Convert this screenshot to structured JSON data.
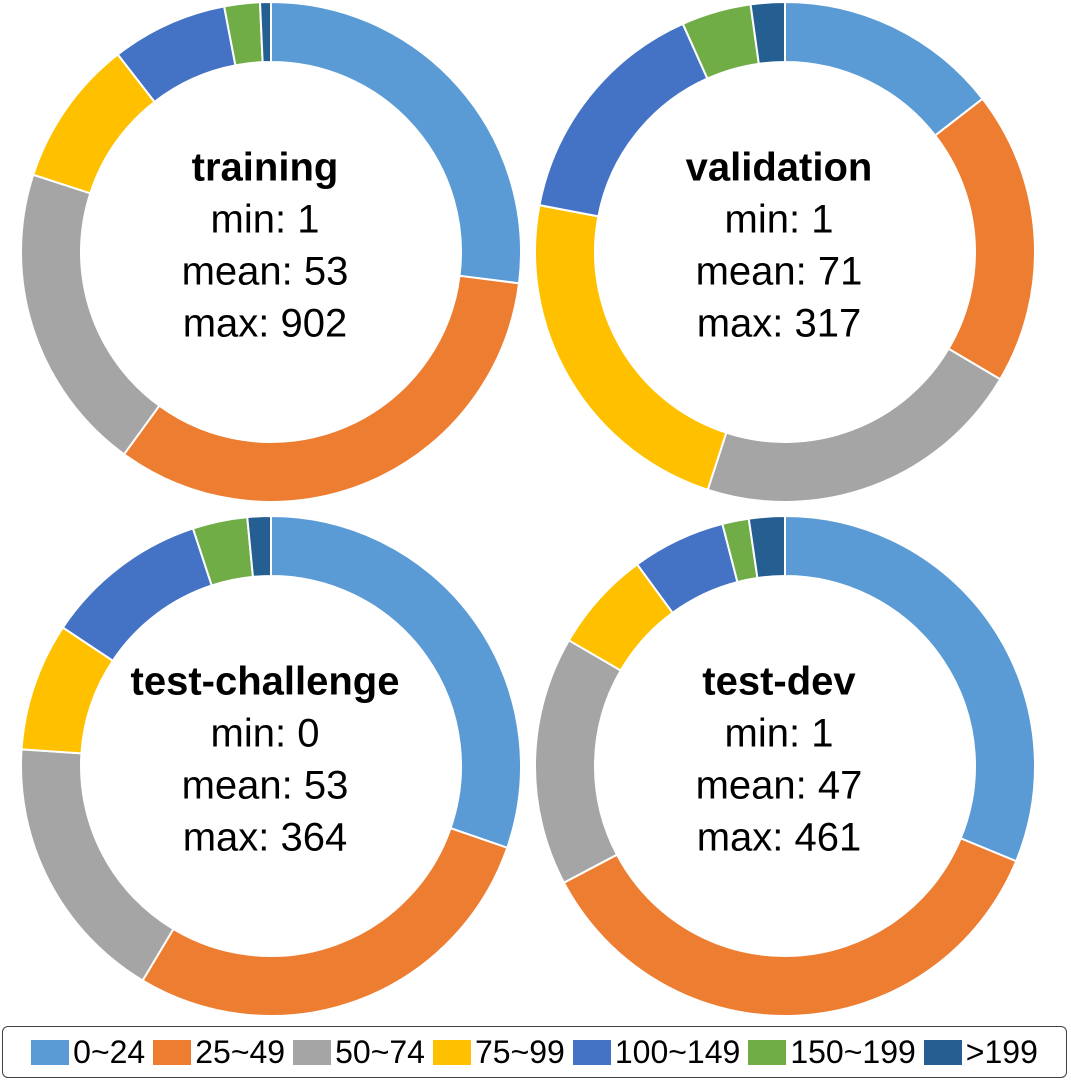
{
  "chart_data": [
    {
      "type": "pie",
      "title": "training",
      "stats": {
        "min": "min: 1",
        "mean": "mean: 53",
        "max": "max: 902"
      },
      "categories": [
        "0~24",
        "25~49",
        "50~74",
        "75~99",
        "100~149",
        "150~199",
        ">199"
      ],
      "values": [
        27.0,
        33.0,
        20.0,
        9.5,
        7.5,
        2.3,
        0.7
      ]
    },
    {
      "type": "pie",
      "title": "validation",
      "stats": {
        "min": "min: 1",
        "mean": "mean: 71",
        "max": "max: 317"
      },
      "categories": [
        "0~24",
        "25~49",
        "50~74",
        "75~99",
        "100~149",
        "150~199",
        ">199"
      ],
      "values": [
        14.5,
        19.0,
        21.5,
        23.0,
        15.3,
        4.5,
        2.2
      ]
    },
    {
      "type": "pie",
      "title": "test-challenge",
      "stats": {
        "min": "min: 0",
        "mean": "mean: 53",
        "max": "max: 364"
      },
      "categories": [
        "0~24",
        "25~49",
        "50~74",
        "75~99",
        "100~149",
        "150~199",
        ">199"
      ],
      "values": [
        30.0,
        28.0,
        17.3,
        8.2,
        10.5,
        3.5,
        1.5
      ]
    },
    {
      "type": "pie",
      "title": "test-dev",
      "stats": {
        "min": "min: 1",
        "mean": "mean: 47",
        "max": "max: 461"
      },
      "categories": [
        "0~24",
        "25~49",
        "50~74",
        "75~99",
        "100~149",
        "150~199",
        ">199"
      ],
      "values": [
        31.0,
        35.8,
        16.0,
        6.5,
        6.0,
        1.7,
        2.3
      ]
    }
  ],
  "legend": {
    "items": [
      {
        "label": "0~24",
        "color": "#5B9BD5"
      },
      {
        "label": "25~49",
        "color": "#ED7D31"
      },
      {
        "label": "50~74",
        "color": "#A5A5A5"
      },
      {
        "label": "75~99",
        "color": "#FFC000"
      },
      {
        "label": "100~149",
        "color": "#4472C4"
      },
      {
        "label": "150~199",
        "color": "#70AD47"
      },
      {
        "label": ">199",
        "color": "#255E91"
      }
    ]
  }
}
